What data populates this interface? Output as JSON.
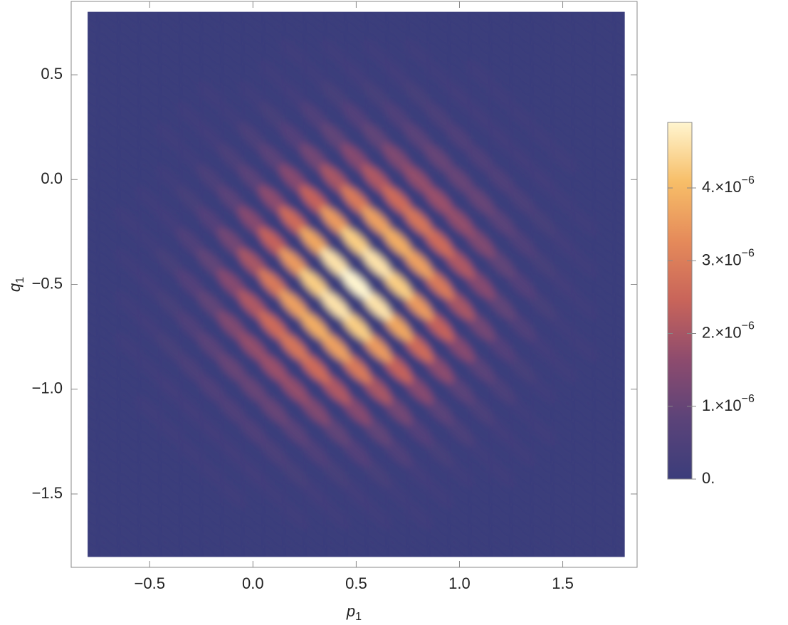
{
  "chart_data": {
    "type": "heatmap",
    "xlabel": "p1",
    "ylabel": "q1",
    "xlim": [
      -0.88,
      1.86
    ],
    "ylim": [
      -1.85,
      0.85
    ],
    "xticks": [
      {
        "value": -0.5,
        "label": "−0.5"
      },
      {
        "value": 0,
        "label": "0.0"
      },
      0.5,
      {
        "value": 1,
        "label": "1.0"
      },
      1.5
    ],
    "yticks": [
      {
        "value": -1.5,
        "label": "−1.5"
      },
      {
        "value": -1,
        "label": "−1.0"
      },
      {
        "value": -0.5,
        "label": "−0.5"
      },
      {
        "value": 0,
        "label": "0.0"
      },
      0.5
    ],
    "zlim": [
      0,
      4.9e-06
    ],
    "zticks": [
      {
        "value": 0,
        "label": "0."
      },
      {
        "value": 1e-06,
        "label": "1.×10−6"
      },
      {
        "value": 2e-06,
        "label": "2.×10−6"
      },
      {
        "value": 3e-06,
        "label": "3.×10−6"
      },
      {
        "value": 4e-06,
        "label": "4.×10−6"
      }
    ],
    "colormap": [
      "#3b3d7b",
      "#5b4379",
      "#8d4b6e",
      "#c8645a",
      "#e58a5a",
      "#f7be68",
      "#fff5cf"
    ],
    "x": [
      -0.8,
      -0.7,
      -0.6,
      -0.5,
      -0.4,
      -0.3,
      -0.2,
      -0.1,
      0,
      0.1,
      0.2,
      0.3,
      0.4,
      0.5,
      0.6,
      0.7,
      0.8,
      0.9,
      1,
      1.1,
      1.2,
      1.3,
      1.4,
      1.5,
      1.6,
      1.7,
      1.8
    ],
    "y": [
      -1.8,
      -1.7,
      -1.6,
      -1.5,
      -1.4,
      -1.3,
      -1.2,
      -1.1,
      -1,
      -0.9,
      -0.8,
      -0.7,
      -0.6,
      -0.5,
      -0.4,
      -0.3,
      -0.2,
      -0.1,
      0,
      0.1,
      0.2,
      0.3,
      0.4,
      0.5,
      0.6,
      0.7,
      0.8
    ],
    "z": [
      [
        0,
        0,
        0,
        0,
        0,
        0,
        0,
        0,
        0,
        0,
        0,
        0,
        0,
        0,
        0,
        0,
        0,
        0,
        0,
        0,
        0,
        0,
        0,
        0,
        0,
        0,
        0
      ],
      [
        0,
        0,
        0,
        0,
        0,
        0,
        0,
        0,
        0,
        0,
        0,
        0,
        0,
        0,
        0,
        0,
        0,
        0,
        0,
        0,
        0,
        0,
        0,
        0,
        0,
        0,
        0
      ],
      [
        0,
        0,
        0,
        0,
        0,
        0,
        0,
        0,
        0,
        0,
        1e-07,
        0,
        1e-07,
        0,
        1e-07,
        0,
        1e-07,
        0,
        0,
        0,
        0,
        0,
        0,
        0,
        0,
        0,
        0
      ],
      [
        0,
        0,
        0,
        0,
        0,
        0,
        0,
        1e-07,
        0,
        1e-07,
        0,
        2e-07,
        0,
        2e-07,
        0,
        1e-07,
        0,
        1e-07,
        0,
        0,
        0,
        0,
        0,
        0,
        0,
        0,
        0
      ],
      [
        0,
        0,
        0,
        0,
        0,
        0,
        1e-07,
        0,
        2e-07,
        0,
        3e-07,
        0,
        3e-07,
        0,
        3e-07,
        0,
        2e-07,
        0,
        1e-07,
        0,
        1e-07,
        0,
        0,
        0,
        0,
        0,
        0
      ],
      [
        0,
        0,
        0,
        0,
        0,
        1e-07,
        0,
        2e-07,
        0,
        4e-07,
        0,
        5e-07,
        0,
        6e-07,
        0,
        5e-07,
        0,
        3e-07,
        0,
        1e-07,
        0,
        1e-07,
        0,
        0,
        0,
        0,
        0
      ],
      [
        0,
        0,
        0,
        0,
        1e-07,
        0,
        2e-07,
        0,
        5e-07,
        0,
        8e-07,
        0,
        9e-07,
        0,
        9e-07,
        0,
        6e-07,
        0,
        4e-07,
        0,
        2e-07,
        0,
        1e-07,
        0,
        0,
        0,
        0
      ],
      [
        0,
        0,
        0,
        1e-07,
        0,
        2e-07,
        0,
        5e-07,
        0,
        1e-06,
        0,
        1.4e-06,
        0,
        1.5e-06,
        0,
        1.2e-06,
        0,
        8e-07,
        0,
        4e-07,
        0,
        1e-07,
        0,
        0,
        0,
        0,
        0
      ],
      [
        0,
        0,
        0,
        0,
        2e-07,
        0,
        5e-07,
        0,
        1e-06,
        0,
        1.7e-06,
        0,
        2.1e-06,
        0,
        2e-06,
        0,
        1.5e-06,
        0,
        8e-07,
        0,
        4e-07,
        0,
        1e-07,
        0,
        0,
        0,
        0
      ],
      [
        0,
        0,
        0,
        1e-07,
        0,
        4e-07,
        0,
        1e-06,
        0,
        1.8e-06,
        0,
        2.6e-06,
        0,
        2.9e-06,
        0,
        2.4e-06,
        0,
        1.6e-06,
        0,
        8e-07,
        0,
        3e-07,
        0,
        1e-07,
        0,
        0,
        0
      ],
      [
        0,
        0,
        1e-07,
        0,
        3e-07,
        0,
        8e-07,
        0,
        1.7e-06,
        0,
        2.8e-06,
        0,
        3.6e-06,
        0,
        3.5e-06,
        0,
        2.6e-06,
        0,
        1.5e-06,
        0,
        6e-07,
        0,
        2e-07,
        0,
        1e-07,
        0,
        0
      ],
      [
        0,
        0,
        0,
        2e-07,
        0,
        5e-07,
        0,
        1.4e-06,
        0,
        2.6e-06,
        0,
        3.8e-06,
        0,
        4.3e-06,
        0,
        3.7e-06,
        0,
        2.4e-06,
        0,
        1.2e-06,
        0,
        5e-07,
        0,
        1e-07,
        0,
        0,
        0
      ],
      [
        0,
        0,
        1e-07,
        0,
        3e-07,
        0,
        9e-07,
        0,
        2.1e-06,
        0,
        3.6e-06,
        0,
        4.6e-06,
        0,
        4.6e-06,
        0,
        3.5e-06,
        0,
        2e-06,
        0,
        9e-07,
        0,
        3e-07,
        0,
        1e-07,
        0,
        0
      ],
      [
        0,
        0,
        0,
        2e-07,
        0,
        6e-07,
        0,
        1.5e-06,
        0,
        2.9e-06,
        0,
        4.3e-06,
        0,
        4.9e-06,
        0,
        4.3e-06,
        0,
        2.9e-06,
        0,
        1.5e-06,
        0,
        6e-07,
        0,
        2e-07,
        0,
        0,
        0
      ],
      [
        0,
        0,
        1e-07,
        0,
        3e-07,
        0,
        9e-07,
        0,
        2e-06,
        0,
        3.5e-06,
        0,
        4.6e-06,
        0,
        4.6e-06,
        0,
        3.6e-06,
        0,
        2.1e-06,
        0,
        9e-07,
        0,
        3e-07,
        0,
        1e-07,
        0,
        0
      ],
      [
        0,
        0,
        0,
        1e-07,
        0,
        5e-07,
        0,
        1.2e-06,
        0,
        2.4e-06,
        0,
        3.7e-06,
        0,
        4.3e-06,
        0,
        3.8e-06,
        0,
        2.6e-06,
        0,
        1.4e-06,
        0,
        5e-07,
        0,
        2e-07,
        0,
        0,
        0
      ],
      [
        0,
        0,
        1e-07,
        0,
        2e-07,
        0,
        6e-07,
        0,
        1.5e-06,
        0,
        2.6e-06,
        0,
        3.5e-06,
        0,
        3.6e-06,
        0,
        2.8e-06,
        0,
        1.7e-06,
        0,
        8e-07,
        0,
        3e-07,
        0,
        1e-07,
        0,
        0
      ],
      [
        0,
        0,
        0,
        1e-07,
        0,
        3e-07,
        0,
        8e-07,
        0,
        1.6e-06,
        0,
        2.4e-06,
        0,
        2.9e-06,
        0,
        2.6e-06,
        0,
        1.8e-06,
        0,
        1e-06,
        0,
        4e-07,
        0,
        1e-07,
        0,
        0,
        0
      ],
      [
        0,
        0,
        0,
        0,
        1e-07,
        0,
        4e-07,
        0,
        8e-07,
        0,
        1.5e-06,
        0,
        2e-06,
        0,
        2.1e-06,
        0,
        1.7e-06,
        0,
        1e-06,
        0,
        5e-07,
        0,
        2e-07,
        0,
        0,
        0,
        0
      ],
      [
        0,
        0,
        0,
        0,
        0,
        1e-07,
        0,
        4e-07,
        0,
        8e-07,
        0,
        1.2e-06,
        0,
        1.5e-06,
        0,
        1.4e-06,
        0,
        1e-06,
        0,
        5e-07,
        0,
        2e-07,
        0,
        1e-07,
        0,
        0,
        0
      ],
      [
        0,
        0,
        0,
        0,
        1e-07,
        0,
        2e-07,
        0,
        4e-07,
        0,
        6e-07,
        0,
        9e-07,
        0,
        9e-07,
        0,
        8e-07,
        0,
        5e-07,
        0,
        2e-07,
        0,
        1e-07,
        0,
        0,
        0,
        0
      ],
      [
        0,
        0,
        0,
        0,
        0,
        1e-07,
        0,
        1e-07,
        0,
        3e-07,
        0,
        5e-07,
        0,
        6e-07,
        0,
        5e-07,
        0,
        4e-07,
        0,
        2e-07,
        0,
        1e-07,
        0,
        0,
        0,
        0,
        0
      ],
      [
        0,
        0,
        0,
        0,
        0,
        0,
        1e-07,
        0,
        1e-07,
        0,
        2e-07,
        0,
        3e-07,
        0,
        3e-07,
        0,
        3e-07,
        0,
        2e-07,
        0,
        1e-07,
        0,
        0,
        0,
        0,
        0,
        0
      ],
      [
        0,
        0,
        0,
        0,
        0,
        0,
        0,
        0,
        0,
        1e-07,
        0,
        1e-07,
        0,
        2e-07,
        0,
        2e-07,
        0,
        1e-07,
        0,
        1e-07,
        0,
        0,
        0,
        0,
        0,
        0,
        0
      ],
      [
        0,
        0,
        0,
        0,
        0,
        0,
        0,
        0,
        0,
        0,
        1e-07,
        0,
        1e-07,
        0,
        1e-07,
        0,
        1e-07,
        0,
        0,
        0,
        0,
        0,
        0,
        0,
        0,
        0,
        0
      ],
      [
        0,
        0,
        0,
        0,
        0,
        0,
        0,
        0,
        0,
        0,
        0,
        0,
        0,
        0,
        0,
        0,
        0,
        0,
        0,
        0,
        0,
        0,
        0,
        0,
        0,
        0,
        0
      ],
      [
        0,
        0,
        0,
        0,
        0,
        0,
        0,
        0,
        0,
        0,
        0,
        0,
        0,
        0,
        0,
        0,
        0,
        0,
        0,
        0,
        0,
        0,
        0,
        0,
        0,
        0,
        0
      ]
    ]
  }
}
